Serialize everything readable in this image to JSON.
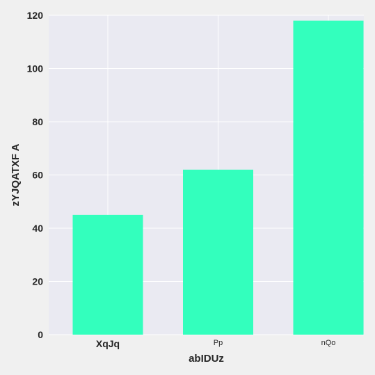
{
  "chart_data": {
    "type": "bar",
    "title": "",
    "xlabel": "abIDUz",
    "ylabel": "zYJQATXF A",
    "categories": [
      "XqJq",
      "Pp",
      "nQo"
    ],
    "values": [
      45,
      62,
      118
    ],
    "ylim": [
      0,
      120
    ],
    "yticks": [
      "0",
      "20",
      "40",
      "60",
      "80",
      "100",
      "120"
    ],
    "grid": true,
    "legend": "none",
    "bar_color": "#33ffbd",
    "plot_background": "#eaeaf2",
    "figure_background": "#f0f0f0",
    "grid_color": "#ffffff"
  }
}
